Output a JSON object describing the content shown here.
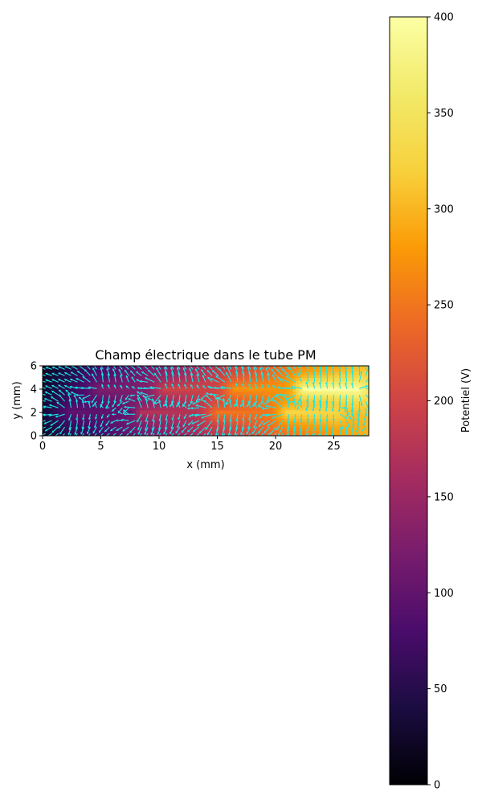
{
  "chart_data": {
    "type": "heatmap",
    "title": "Champ électrique dans le tube PM",
    "xlabel": "x (mm)",
    "ylabel": "y (mm)",
    "xlim": [
      0,
      28
    ],
    "ylim": [
      0,
      6
    ],
    "x_ticks": [
      0,
      5,
      10,
      15,
      20,
      25
    ],
    "y_ticks": [
      0,
      2,
      4,
      6
    ],
    "colormap": "inferno",
    "colorbar": {
      "label": "Potentiel (V)",
      "range": [
        0,
        400
      ],
      "ticks": [
        0,
        50,
        100,
        150,
        200,
        250,
        300,
        350,
        400
      ]
    },
    "field_arrow_color": "#19e6e6",
    "background_potential": {
      "description_free": true,
      "left_value": 0,
      "right_value": 400
    },
    "electrodes": [
      {
        "x_start": 2.5,
        "x_end": 7.5,
        "y": 2.0,
        "potential": 100
      },
      {
        "x_start": 5.0,
        "x_end": 8.5,
        "y": 4.0,
        "potential": 125
      },
      {
        "x_start": 8.5,
        "x_end": 12.5,
        "y": 2.0,
        "potential": 175
      },
      {
        "x_start": 10.5,
        "x_end": 14.0,
        "y": 4.0,
        "potential": 200
      },
      {
        "x_start": 15.0,
        "x_end": 19.0,
        "y": 2.0,
        "potential": 250
      },
      {
        "x_start": 16.5,
        "x_end": 20.5,
        "y": 4.0,
        "potential": 275
      },
      {
        "x_start": 21.0,
        "x_end": 25.0,
        "y": 2.0,
        "potential": 330
      },
      {
        "x_start": 22.5,
        "x_end": 27.0,
        "y": 4.0,
        "potential": 400
      }
    ]
  }
}
